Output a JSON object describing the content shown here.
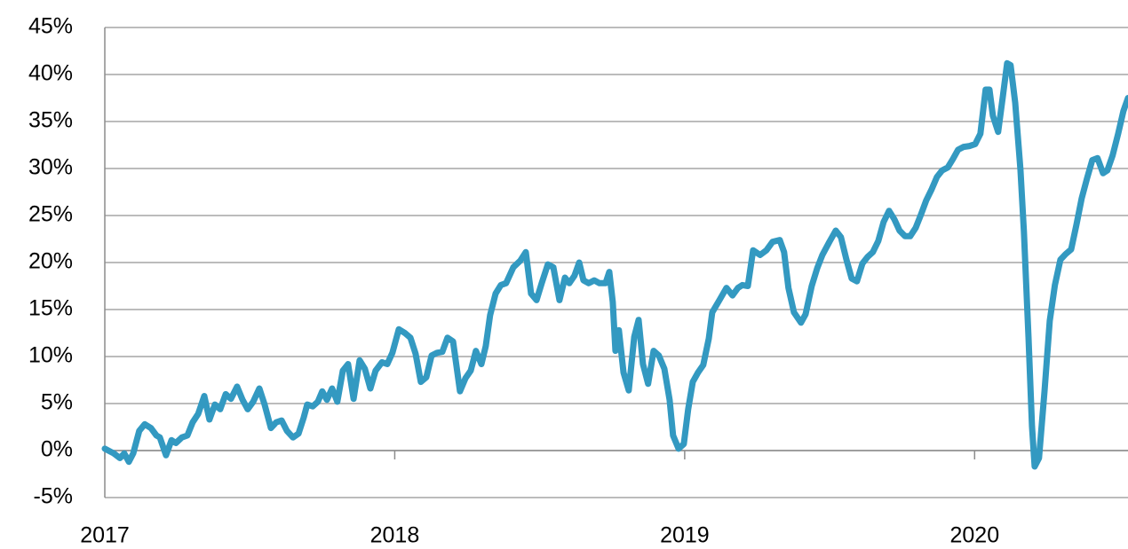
{
  "chart_data": {
    "type": "line",
    "color": "#3399c1",
    "xlim": [
      2017,
      2020.529
    ],
    "xticks": [
      2017,
      2018,
      2019,
      2020
    ],
    "ylim": [
      -5,
      45
    ],
    "yticks": [
      {
        "value": -5,
        "label": "-5%"
      },
      {
        "value": 0,
        "label": "0%"
      },
      {
        "value": 5,
        "label": "5%"
      },
      {
        "value": 10,
        "label": "10%"
      },
      {
        "value": 15,
        "label": "15%"
      },
      {
        "value": 20,
        "label": "20%"
      },
      {
        "value": 25,
        "label": "25%"
      },
      {
        "value": 30,
        "label": "30%"
      },
      {
        "value": 35,
        "label": "35%"
      },
      {
        "value": 40,
        "label": "40%"
      },
      {
        "value": 45,
        "label": "45%"
      }
    ],
    "grid": true,
    "x": [
      2017.0,
      2017.031,
      2017.052,
      2017.067,
      2017.083,
      2017.098,
      2017.119,
      2017.138,
      2017.159,
      2017.178,
      2017.19,
      2017.211,
      2017.23,
      2017.245,
      2017.266,
      2017.285,
      2017.303,
      2017.322,
      2017.343,
      2017.361,
      2017.38,
      2017.398,
      2017.417,
      2017.435,
      2017.456,
      2017.475,
      2017.493,
      2017.512,
      2017.533,
      2017.551,
      2017.573,
      2017.591,
      2017.61,
      2017.628,
      2017.649,
      2017.668,
      2017.686,
      2017.698,
      2017.717,
      2017.735,
      2017.75,
      2017.766,
      2017.784,
      2017.802,
      2017.821,
      2017.839,
      2017.858,
      2017.879,
      2017.897,
      2017.916,
      2017.934,
      2017.956,
      2017.974,
      2017.992,
      2018.014,
      2018.035,
      2018.054,
      2018.072,
      2018.09,
      2018.109,
      2018.127,
      2018.146,
      2018.164,
      2018.182,
      2018.201,
      2018.225,
      2018.244,
      2018.262,
      2018.28,
      2018.299,
      2018.314,
      2018.329,
      2018.348,
      2018.366,
      2018.384,
      2018.409,
      2018.433,
      2018.452,
      2018.47,
      2018.489,
      2018.507,
      2018.528,
      2018.547,
      2018.568,
      2018.587,
      2018.602,
      2018.62,
      2018.636,
      2018.651,
      2018.669,
      2018.688,
      2018.706,
      2018.727,
      2018.74,
      2018.752,
      2018.761,
      2018.773,
      2018.789,
      2018.807,
      2018.826,
      2018.841,
      2018.856,
      2018.874,
      2018.893,
      2018.911,
      2018.93,
      2018.948,
      2018.96,
      2018.979,
      2018.997,
      2019.012,
      2019.028,
      2019.046,
      2019.064,
      2019.083,
      2019.095,
      2019.12,
      2019.144,
      2019.165,
      2019.184,
      2019.199,
      2019.218,
      2019.236,
      2019.26,
      2019.282,
      2019.303,
      2019.328,
      2019.343,
      2019.358,
      2019.377,
      2019.401,
      2019.417,
      2019.438,
      2019.457,
      2019.475,
      2019.499,
      2019.521,
      2019.539,
      2019.558,
      2019.576,
      2019.594,
      2019.613,
      2019.631,
      2019.649,
      2019.668,
      2019.686,
      2019.705,
      2019.723,
      2019.741,
      2019.76,
      2019.778,
      2019.797,
      2019.815,
      2019.833,
      2019.852,
      2019.87,
      2019.888,
      2019.907,
      2019.925,
      2019.943,
      2019.962,
      2019.983,
      2020.002,
      2020.02,
      2020.038,
      2020.051,
      2020.063,
      2020.081,
      2020.097,
      2020.112,
      2020.124,
      2020.14,
      2020.158,
      2020.17,
      2020.186,
      2020.198,
      2020.207,
      2020.222,
      2020.241,
      2020.259,
      2020.277,
      2020.296,
      2020.314,
      2020.333,
      2020.351,
      2020.369,
      2020.388,
      2020.406,
      2020.424,
      2020.443,
      2020.458,
      2020.476,
      2020.495,
      2020.513,
      2020.529
    ],
    "values": [
      0.2,
      -0.3,
      -0.8,
      -0.3,
      -1.2,
      -0.3,
      2.1,
      2.8,
      2.4,
      1.6,
      1.4,
      -0.5,
      1.1,
      0.8,
      1.4,
      1.6,
      3.0,
      3.9,
      5.8,
      3.3,
      4.9,
      4.4,
      6.0,
      5.5,
      6.8,
      5.4,
      4.4,
      5.2,
      6.6,
      4.9,
      2.4,
      3.0,
      3.2,
      2.1,
      1.4,
      1.8,
      3.5,
      4.9,
      4.7,
      5.2,
      6.3,
      5.4,
      6.6,
      5.2,
      8.5,
      9.2,
      5.5,
      9.6,
      8.7,
      6.6,
      8.5,
      9.4,
      9.2,
      10.4,
      12.9,
      12.5,
      12.0,
      10.3,
      7.3,
      7.8,
      10.1,
      10.4,
      10.5,
      12.0,
      11.6,
      6.3,
      7.7,
      8.5,
      10.6,
      9.2,
      11.1,
      14.4,
      16.7,
      17.6,
      17.8,
      19.5,
      20.2,
      21.1,
      16.7,
      16.0,
      17.8,
      19.8,
      19.5,
      16.0,
      18.4,
      17.8,
      18.6,
      20.0,
      18.1,
      17.8,
      18.1,
      17.8,
      17.8,
      19.0,
      15.8,
      10.6,
      12.8,
      8.3,
      6.4,
      12.1,
      13.9,
      9.2,
      7.1,
      10.6,
      10.1,
      8.7,
      5.4,
      1.6,
      0.2,
      0.7,
      4.4,
      7.3,
      8.3,
      9.1,
      11.9,
      14.7,
      16.0,
      17.3,
      16.5,
      17.3,
      17.6,
      17.5,
      21.3,
      20.8,
      21.3,
      22.2,
      22.4,
      21.1,
      17.3,
      14.7,
      13.6,
      14.5,
      17.5,
      19.4,
      20.8,
      22.2,
      23.4,
      22.7,
      20.3,
      18.3,
      18.0,
      19.9,
      20.6,
      21.1,
      22.3,
      24.3,
      25.5,
      24.6,
      23.4,
      22.8,
      22.8,
      23.7,
      25.1,
      26.6,
      27.8,
      29.1,
      29.8,
      30.1,
      31.0,
      32.0,
      32.3,
      32.4,
      32.6,
      33.7,
      38.4,
      38.4,
      35.6,
      33.9,
      37.6,
      41.2,
      41.0,
      37.0,
      29.9,
      23.3,
      12.0,
      2.6,
      -1.7,
      -0.8,
      6.3,
      13.8,
      17.6,
      20.3,
      20.9,
      21.4,
      24.0,
      26.8,
      29.0,
      30.9,
      31.1,
      29.5,
      29.8,
      31.4,
      33.7,
      36.1,
      37.5
    ]
  }
}
